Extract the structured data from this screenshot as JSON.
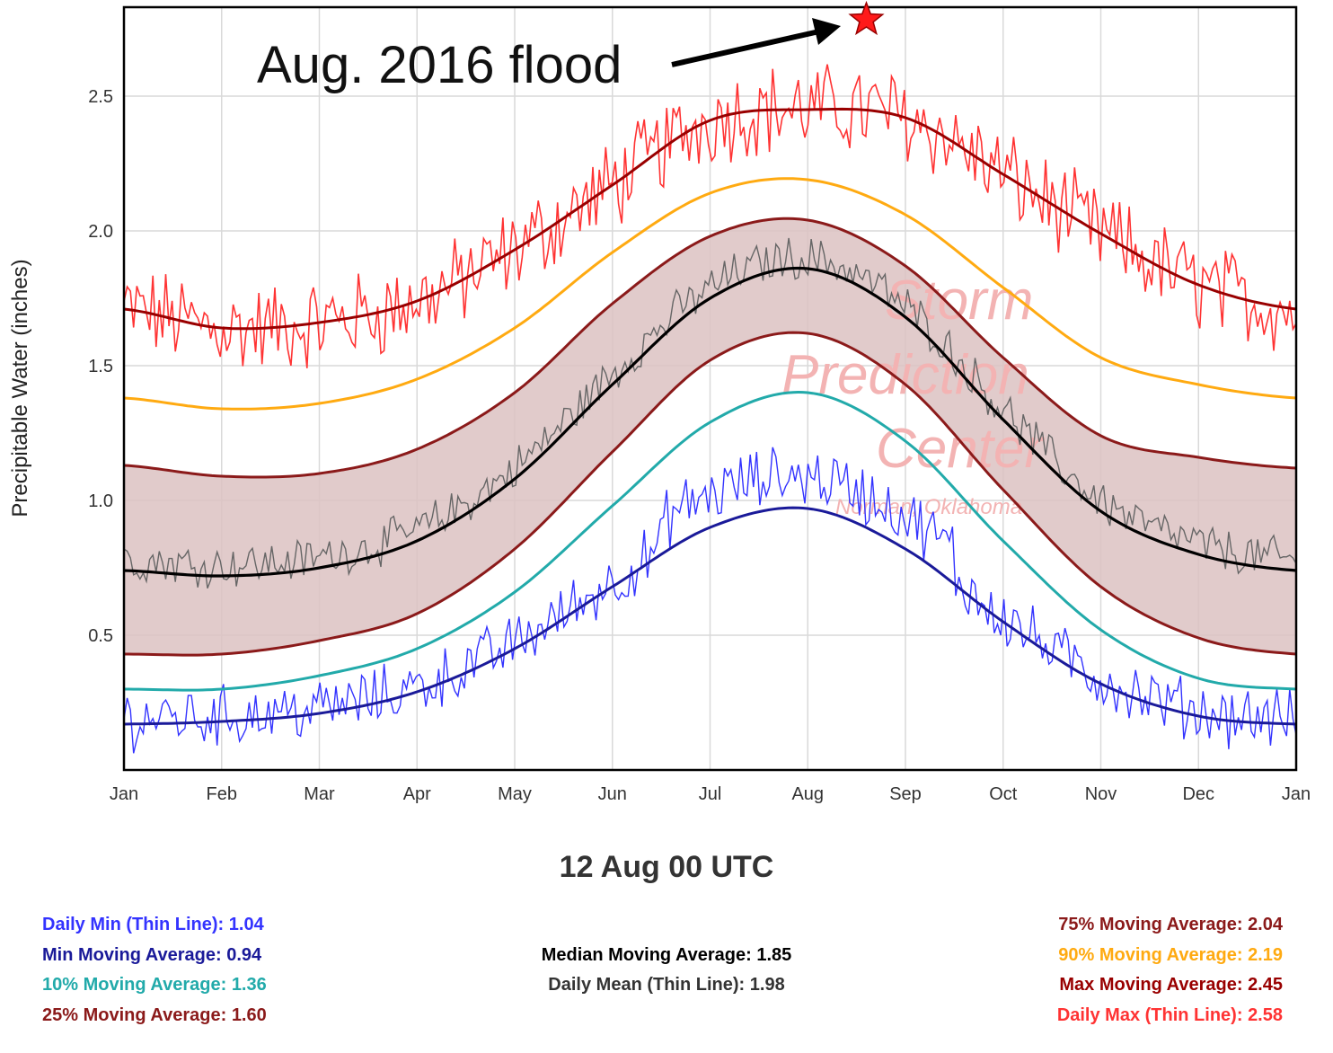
{
  "colors": {
    "daily_min": "#3333ff",
    "min_moving_avg": "#1a1a99",
    "p10_moving_avg": "#22aaaa",
    "p25_moving_avg": "#8b1a1a",
    "median_moving_avg": "#000000",
    "daily_mean": "#666666",
    "p75_moving_avg": "#8b1a1a",
    "p90_moving_avg": "#ffaa11",
    "max_moving_avg": "#990000",
    "daily_max": "#ff3333",
    "band_fill": "#dcc2c2"
  },
  "chart_data": {
    "type": "line",
    "ylabel": "Precipitable Water (inches)",
    "xlabel": "",
    "ylim": [
      0.0,
      2.83
    ],
    "yticks": [
      "0.5",
      "1.0",
      "1.5",
      "2.0",
      "2.5"
    ],
    "ytick_values": [
      0.5,
      1.0,
      1.5,
      2.0,
      2.5
    ],
    "xticks": [
      "Jan",
      "Feb",
      "Mar",
      "Apr",
      "May",
      "Jun",
      "Jul",
      "Aug",
      "Sep",
      "Oct",
      "Nov",
      "Dec",
      "Jan"
    ],
    "grid": true,
    "shaded_band": "25% to 75% moving average",
    "watermark": {
      "line1": "Storm",
      "line2": "Prediction",
      "line3": "Center",
      "line4": "Norman, Oklahoma"
    },
    "annotation": {
      "text": "Aug. 2016 flood",
      "x_month": 7.6,
      "y": 2.8
    },
    "series_monthly_points": {
      "x_months": [
        0,
        1,
        2,
        3,
        4,
        5,
        6,
        7,
        8,
        9,
        10,
        11,
        12
      ],
      "min_moving_avg": [
        0.17,
        0.18,
        0.21,
        0.29,
        0.45,
        0.68,
        0.9,
        0.97,
        0.82,
        0.55,
        0.32,
        0.2,
        0.17
      ],
      "p10_moving_avg": [
        0.3,
        0.3,
        0.35,
        0.45,
        0.66,
        0.98,
        1.29,
        1.4,
        1.22,
        0.85,
        0.52,
        0.34,
        0.3
      ],
      "p25_moving_avg": [
        0.43,
        0.43,
        0.48,
        0.58,
        0.82,
        1.18,
        1.52,
        1.62,
        1.43,
        1.04,
        0.68,
        0.49,
        0.43
      ],
      "median_moving_avg": [
        0.74,
        0.72,
        0.75,
        0.85,
        1.08,
        1.43,
        1.75,
        1.86,
        1.68,
        1.3,
        0.96,
        0.8,
        0.74
      ],
      "p75_moving_avg": [
        1.13,
        1.09,
        1.1,
        1.19,
        1.4,
        1.73,
        1.98,
        2.04,
        1.87,
        1.53,
        1.24,
        1.16,
        1.12
      ],
      "p90_moving_avg": [
        1.38,
        1.34,
        1.36,
        1.45,
        1.64,
        1.92,
        2.14,
        2.19,
        2.06,
        1.79,
        1.53,
        1.43,
        1.38
      ],
      "max_moving_avg": [
        1.71,
        1.64,
        1.66,
        1.74,
        1.93,
        2.17,
        2.41,
        2.45,
        2.42,
        2.21,
        1.99,
        1.8,
        1.71
      ]
    },
    "daily_noise_amplitude": {
      "daily_max": 0.15,
      "daily_mean": 0.07,
      "daily_min": 0.1
    },
    "valid_time": "12 Aug 00 UTC",
    "legend": {
      "daily_min": {
        "label": "Daily Min (Thin Line):",
        "value": "1.04"
      },
      "min_moving_avg": {
        "label": "Min Moving Average:",
        "value": "0.94"
      },
      "p10_moving_avg": {
        "label": "10% Moving Average:",
        "value": "1.36"
      },
      "p25_moving_avg": {
        "label": "25% Moving Average:",
        "value": "1.60"
      },
      "median_moving_avg": {
        "label": "Median Moving Average:",
        "value": "1.85"
      },
      "daily_mean": {
        "label": "Daily Mean (Thin Line):",
        "value": "1.98"
      },
      "p75_moving_avg": {
        "label": "75% Moving Average:",
        "value": "2.04"
      },
      "p90_moving_avg": {
        "label": "90% Moving Average:",
        "value": "2.19"
      },
      "max_moving_avg": {
        "label": "Max Moving Average:",
        "value": "2.45"
      },
      "daily_max": {
        "label": "Daily Max (Thin Line):",
        "value": "2.58"
      }
    }
  }
}
